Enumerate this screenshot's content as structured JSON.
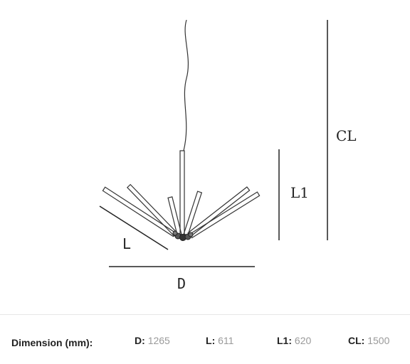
{
  "diagram": {
    "labels": {
      "cl": "CL",
      "l1": "L1",
      "l": "L",
      "d": "D"
    }
  },
  "specs": {
    "title": "Dimension (mm):",
    "items": [
      {
        "key": "D",
        "value": "1265"
      },
      {
        "key": "L",
        "value": "611"
      },
      {
        "key": "L1",
        "value": "620"
      },
      {
        "key": "CL",
        "value": "1500"
      }
    ]
  }
}
